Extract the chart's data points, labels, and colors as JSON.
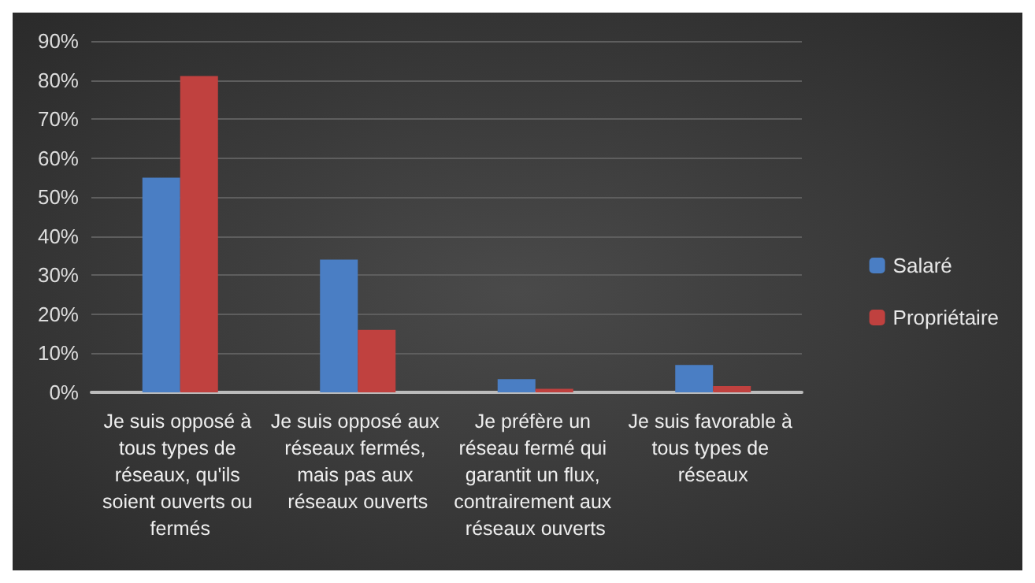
{
  "chart_data": {
    "type": "bar",
    "categories": [
      "Je suis opposé à tous types de réseaux, qu'ils soient ouverts ou fermés",
      "Je suis opposé aux réseaux fermés, mais pas aux réseaux ouverts",
      "Je préfère un réseau fermé qui garantit un flux, contrairement aux réseaux ouverts",
      "Je suis favorable à tous types de réseaux"
    ],
    "series": [
      {
        "name": "Salaré",
        "color": "#4a7ec4",
        "values": [
          55,
          34,
          3.4,
          7
        ]
      },
      {
        "name": "Propriétaire",
        "color": "#c0413f",
        "values": [
          81,
          16,
          0.9,
          1.6
        ]
      }
    ],
    "ylim": [
      0,
      90
    ],
    "yticks": [
      {
        "value": 0,
        "label": "0%"
      },
      {
        "value": 10,
        "label": "10%"
      },
      {
        "value": 20,
        "label": "20%"
      },
      {
        "value": 30,
        "label": "30%"
      },
      {
        "value": 40,
        "label": "40%"
      },
      {
        "value": 50,
        "label": "50%"
      },
      {
        "value": 60,
        "label": "60%"
      },
      {
        "value": 70,
        "label": "70%"
      },
      {
        "value": 80,
        "label": "80%"
      },
      {
        "value": 90,
        "label": "90%"
      }
    ],
    "grid": "y",
    "legend": "right"
  }
}
